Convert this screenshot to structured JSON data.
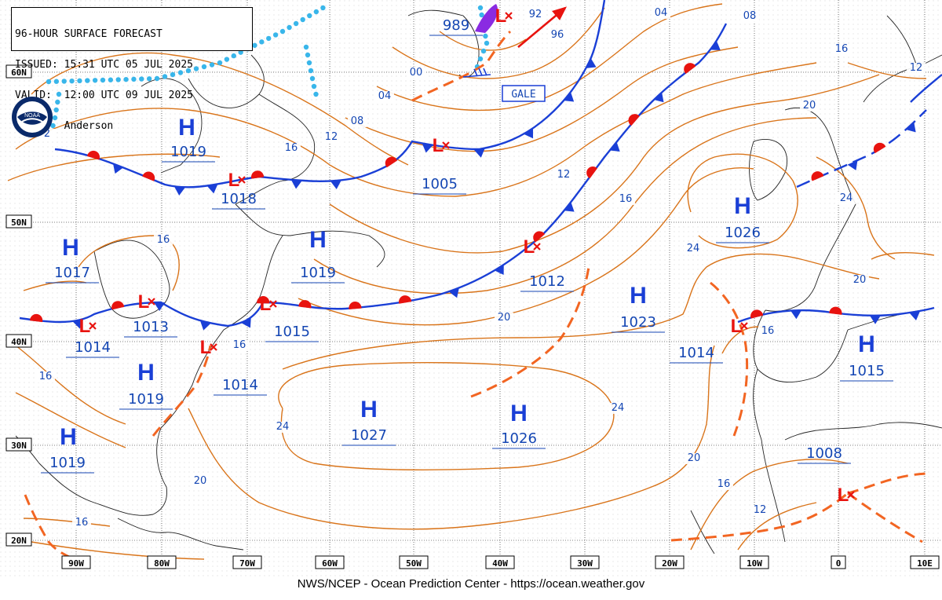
{
  "header": {
    "line1": "96-HOUR SURFACE FORECAST",
    "line2": "ISSUED: 15:31 UTC 05 JUL 2025",
    "line3": "VALID:  12:00 UTC 09 JUL 2025",
    "line4": "FCSTR:  Anderson"
  },
  "logo_text": "NOAA",
  "footer": "NWS/NCEP - Ocean Prediction Center - https://ocean.weather.gov",
  "colors": {
    "front_blue": "#1a3fd6",
    "front_red": "#e8130f",
    "isobar": "#d9741a",
    "trough": "#f26522",
    "label_blue": "#1446b3",
    "ice": "#39b6ea",
    "grid": "#000000"
  },
  "lat_labels": [
    {
      "text": "60N"
    },
    {
      "text": "50N"
    },
    {
      "text": "40N"
    },
    {
      "text": "30N"
    },
    {
      "text": "20N"
    }
  ],
  "lon_labels": [
    {
      "text": "90W"
    },
    {
      "text": "80W"
    },
    {
      "text": "70W"
    },
    {
      "text": "60W"
    },
    {
      "text": "50W"
    },
    {
      "text": "40W"
    },
    {
      "text": "30W"
    },
    {
      "text": "20W"
    },
    {
      "text": "10W"
    },
    {
      "text": "0"
    },
    {
      "text": "10E"
    }
  ],
  "pressure_centers": [
    {
      "type": "H",
      "value": "1019"
    },
    {
      "type": "H",
      "value": "1019"
    },
    {
      "type": "H",
      "value": "1017"
    },
    {
      "type": "H",
      "value": "1019"
    },
    {
      "type": "H",
      "value": "1019"
    },
    {
      "type": "H",
      "value": "1027"
    },
    {
      "type": "H",
      "value": "1026"
    },
    {
      "type": "H",
      "value": "1023"
    },
    {
      "type": "H",
      "value": "1026"
    },
    {
      "type": "H",
      "value": "1015"
    },
    {
      "type": "L",
      "value": "1018"
    },
    {
      "type": "L",
      "value": "1005"
    },
    {
      "type": "L",
      "value": "1012"
    },
    {
      "type": "L",
      "value": "1015"
    },
    {
      "type": "L",
      "value": "1013"
    },
    {
      "type": "L",
      "value": "1014"
    },
    {
      "type": "L",
      "value": "1014"
    },
    {
      "type": "L",
      "value": "1014"
    },
    {
      "type": "L",
      "value": "1008"
    },
    {
      "type": "L",
      "value": "989"
    }
  ],
  "isobar_labels": [
    "92",
    "96",
    "04",
    "08",
    "16",
    "12",
    "00",
    "04",
    "08",
    "12",
    "16",
    "12",
    "16",
    "20",
    "16",
    "16",
    "20",
    "24",
    "24",
    "24",
    "20",
    "16",
    "20",
    "24",
    "16",
    "12",
    "16",
    "20",
    "16",
    "12",
    "2"
  ],
  "warning_box": "GALE",
  "low_symbol": "L",
  "high_symbol": "H"
}
